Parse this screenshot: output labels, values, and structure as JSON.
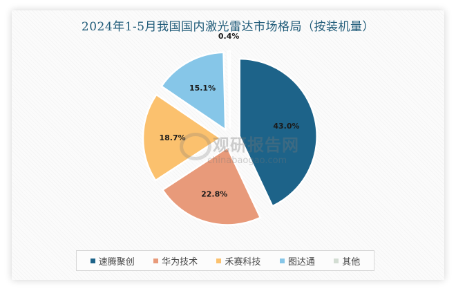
{
  "chart_data": {
    "type": "pie",
    "title": "2024年1-5月我国国内激光雷达市场格局（按装机量）",
    "categories": [
      "速腾聚创",
      "华为技术",
      "禾赛科技",
      "图达通",
      "其他"
    ],
    "values": [
      43.0,
      22.8,
      18.7,
      15.1,
      0.4
    ],
    "labels": [
      "43.0%",
      "22.8%",
      "18.7%",
      "15.1%",
      "0.4%"
    ],
    "colors": [
      "#1d6389",
      "#e89a7a",
      "#fbc16e",
      "#86c6e8",
      "#d3ddd3"
    ],
    "exploded": true,
    "legend_position": "bottom",
    "unit": "%"
  },
  "watermark": {
    "cn": "观研报告网",
    "en": "chinabaogao.com"
  }
}
